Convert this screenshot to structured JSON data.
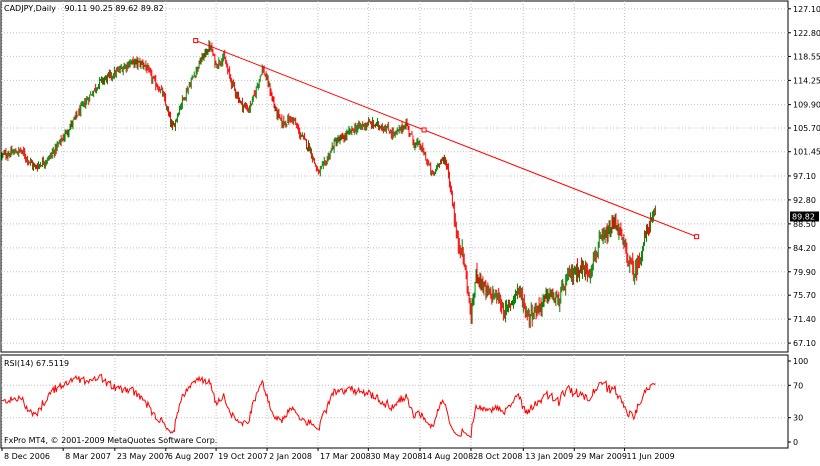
{
  "window": {
    "symbol_label": "CADJPY,Daily",
    "ohlc_label": "90.11 90.25 89.62 89.82",
    "copyright": "FxPro MT4, © 2001-2009 MetaQuotes Software Corp."
  },
  "colors": {
    "background": "#ffffff",
    "grid": "#c0c0c0",
    "bull_candle": "#008000",
    "bear_candle": "#ff0000",
    "trendline": "#ff0000",
    "rsi_line": "#ff0000",
    "price_badge_bg": "#000000",
    "price_badge_fg": "#ffffff"
  },
  "chart_data": [
    {
      "type": "candlestick",
      "name": "CADJPY Daily",
      "current_price": "89.82",
      "ylim": [
        65.5,
        128.5
      ],
      "y_ticks": [
        "127.10",
        "122.80",
        "118.55",
        "114.25",
        "109.90",
        "105.70",
        "101.45",
        "97.10",
        "92.80",
        "88.50",
        "84.20",
        "79.90",
        "75.70",
        "71.40",
        "67.10"
      ],
      "x_ticks": [
        "8 Dec 2006",
        "8 Mar 2007",
        "23 May 2007",
        "6 Aug 2007",
        "19 Oct 2007",
        "2 Jan 2008",
        "17 Mar 2008",
        "30 May 2008",
        "14 Aug 2008",
        "28 Oct 2008",
        "13 Jan 2009",
        "29 Mar 2009",
        "11 Jun 2009"
      ],
      "price_path": [
        [
          "2006-12-08",
          100.8
        ],
        [
          "2007-01-05",
          101.6
        ],
        [
          "2007-01-25",
          98.6
        ],
        [
          "2007-02-15",
          100.3
        ],
        [
          "2007-03-08",
          104.0
        ],
        [
          "2007-04-05",
          109.5
        ],
        [
          "2007-05-01",
          114.0
        ],
        [
          "2007-05-23",
          115.5
        ],
        [
          "2007-06-15",
          117.5
        ],
        [
          "2007-07-05",
          117.2
        ],
        [
          "2007-07-20",
          114.0
        ],
        [
          "2007-08-01",
          112.0
        ],
        [
          "2007-08-16",
          105.5
        ],
        [
          "2007-08-28",
          110.0
        ],
        [
          "2007-09-10",
          113.5
        ],
        [
          "2007-09-25",
          117.5
        ],
        [
          "2007-10-10",
          120.5
        ],
        [
          "2007-10-19",
          117.0
        ],
        [
          "2007-10-30",
          118.5
        ],
        [
          "2007-11-05",
          116.0
        ],
        [
          "2007-11-14",
          113.0
        ],
        [
          "2007-11-25",
          110.0
        ],
        [
          "2007-12-06",
          109.0
        ],
        [
          "2007-12-14",
          111.5
        ],
        [
          "2007-12-26",
          116.5
        ],
        [
          "2008-01-04",
          113.5
        ],
        [
          "2008-01-14",
          109.0
        ],
        [
          "2008-01-24",
          106.5
        ],
        [
          "2008-02-08",
          107.5
        ],
        [
          "2008-02-20",
          104.5
        ],
        [
          "2008-03-05",
          102.0
        ],
        [
          "2008-03-17",
          97.5
        ],
        [
          "2008-03-28",
          99.5
        ],
        [
          "2008-04-10",
          103.0
        ],
        [
          "2008-04-24",
          104.0
        ],
        [
          "2008-05-08",
          105.5
        ],
        [
          "2008-05-30",
          106.5
        ],
        [
          "2008-06-20",
          106.0
        ],
        [
          "2008-07-08",
          104.5
        ],
        [
          "2008-07-25",
          106.5
        ],
        [
          "2008-08-05",
          103.0
        ],
        [
          "2008-08-14",
          102.5
        ],
        [
          "2008-08-22",
          100.5
        ],
        [
          "2008-09-02",
          97.0
        ],
        [
          "2008-09-12",
          100.0
        ],
        [
          "2008-09-22",
          99.5
        ],
        [
          "2008-10-02",
          91.5
        ],
        [
          "2008-10-08",
          85.0
        ],
        [
          "2008-10-14",
          84.5
        ],
        [
          "2008-10-22",
          78.0
        ],
        [
          "2008-10-28",
          71.5
        ],
        [
          "2008-11-05",
          80.0
        ],
        [
          "2008-11-20",
          76.0
        ],
        [
          "2008-12-05",
          75.5
        ],
        [
          "2008-12-18",
          72.5
        ],
        [
          "2009-01-05",
          77.0
        ],
        [
          "2009-01-20",
          72.0
        ],
        [
          "2009-02-05",
          73.5
        ],
        [
          "2009-02-20",
          76.0
        ],
        [
          "2009-03-05",
          74.5
        ],
        [
          "2009-03-20",
          79.0
        ],
        [
          "2009-04-05",
          80.5
        ],
        [
          "2009-04-20",
          80.0
        ],
        [
          "2009-05-05",
          85.0
        ],
        [
          "2009-05-20",
          87.0
        ],
        [
          "2009-05-28",
          89.0
        ],
        [
          "2009-06-05",
          86.5
        ],
        [
          "2009-06-15",
          82.5
        ],
        [
          "2009-06-26",
          79.5
        ],
        [
          "2009-07-07",
          84.0
        ],
        [
          "2009-07-17",
          88.5
        ],
        [
          "2009-07-27",
          89.82
        ]
      ],
      "trendline": {
        "from": [
          "2007-09-19",
          121.4
        ],
        "to": [
          "2009-09-25",
          86.2
        ]
      }
    },
    {
      "type": "line",
      "name": "RSI",
      "label": "RSI(14) 67.5119",
      "ylim": [
        0,
        100
      ],
      "y_ticks": [
        "100",
        "70",
        "30",
        "0"
      ],
      "last_value": 67.5119
    }
  ]
}
